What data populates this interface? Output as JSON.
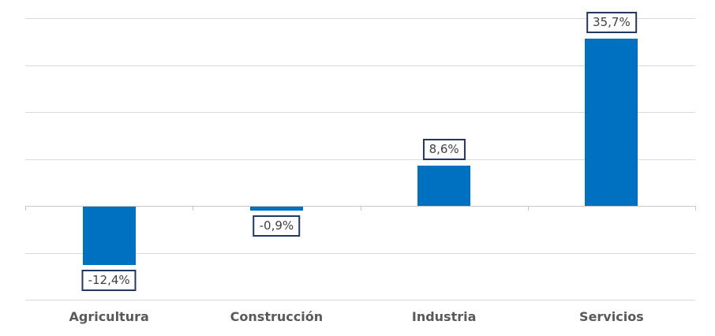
{
  "chart_data": {
    "type": "bar",
    "categories": [
      "Agricultura",
      "Construcción",
      "Industria",
      "Servicios"
    ],
    "values": [
      -12.4,
      -0.9,
      8.6,
      35.7
    ],
    "value_labels": [
      "-12,4%",
      "-0,9%",
      "8,6%",
      "35,7%"
    ],
    "title": "",
    "xlabel": "",
    "ylabel": "",
    "ylim": [
      -20,
      40
    ],
    "gridline_step": 10,
    "grid": true,
    "legend": false,
    "axis_tick_labels_visible": false,
    "colors": {
      "bar": "#0070C0",
      "gridline": "#D9D9D9",
      "axis": "#C6C6C6",
      "label_box_border": "#1F3864",
      "label_box_fill": "#FFFFFF",
      "label_text": "#404040",
      "category_text": "#595959"
    }
  }
}
